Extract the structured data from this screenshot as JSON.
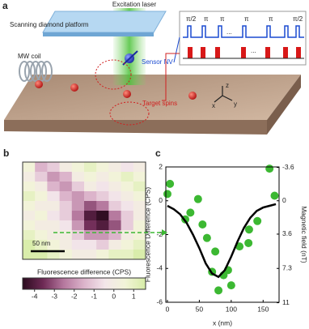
{
  "panel_a": {
    "label": "a",
    "excitation_laser": "Excitation laser",
    "platform": "Scanning diamond platform",
    "mw_coil": "MW coil",
    "sensor": "Sensor NV",
    "targets": "Target spins",
    "pulses": [
      "π/2",
      "π",
      "π",
      "π",
      "π",
      "π/2"
    ],
    "ellipsis_top": "...",
    "ellipsis_bottom": "...",
    "axes": [
      "z",
      "x",
      "y"
    ]
  },
  "panel_b": {
    "label": "b",
    "scale_bar": "50 nm"
  },
  "panel_c": {
    "label": "c"
  },
  "chart_data": [
    {
      "type": "heatmap",
      "z": [
        [
          0.5,
          -1.5,
          -1,
          0,
          0.5,
          1,
          0.5,
          0,
          -0.5,
          0
        ],
        [
          0,
          -1,
          -2,
          -1.5,
          0,
          0.5,
          0,
          0.5,
          1,
          0.5
        ],
        [
          0.5,
          0,
          -1.5,
          -2,
          -1,
          0,
          -0.5,
          0,
          0.5,
          1
        ],
        [
          1,
          0.5,
          -0.5,
          -1.5,
          -2,
          -1.5,
          -1,
          -0.5,
          0,
          0.5
        ],
        [
          0.5,
          0,
          0,
          -1,
          -2,
          -3,
          -2.5,
          -1,
          -0.5,
          0
        ],
        [
          0,
          0.5,
          -0.5,
          -1,
          -2.5,
          -4,
          -4.5,
          -2.5,
          -1,
          0
        ],
        [
          0.5,
          0,
          0,
          -0.5,
          -2,
          -3.5,
          -4,
          -3,
          -1,
          0.5
        ],
        [
          1,
          0.5,
          0,
          0,
          -1,
          -2,
          -2,
          -1.5,
          0,
          0.5
        ],
        [
          1.5,
          1,
          0.5,
          0,
          -0.5,
          -0.5,
          -1,
          0,
          0.5,
          1
        ],
        [
          1.5,
          1.5,
          1,
          0.5,
          0,
          0,
          0.5,
          1,
          1,
          1.5
        ]
      ],
      "colorscale": [
        "#2b0b1e",
        "#6e2a55",
        "#b5789e",
        "#dcb4cb",
        "#f3e6ea",
        "#f2f4d8",
        "#d6eca6"
      ],
      "zlim": [
        -4.6,
        1.6
      ],
      "zticks": [
        -4,
        -3,
        -2,
        -1,
        0,
        1
      ],
      "colorbar_label": "Fluorescence difference (CPS)"
    },
    {
      "type": "scatter",
      "xlabel": "x (nm)",
      "ylabel": "Fluorescence Difference (CPS)",
      "y2label": "Magnetic field (nT)",
      "xlim": [
        -2.5,
        175
      ],
      "xticks": [
        0,
        50,
        100,
        150
      ],
      "ylim": [
        -6,
        2
      ],
      "yticks": [
        2,
        0,
        -2,
        -4,
        -6
      ],
      "y2lim": [
        10.95,
        -3.65
      ],
      "y2ticks": [
        -3.6,
        0,
        3.6,
        7.3,
        11
      ],
      "series": [
        {
          "type": "scatter",
          "color": "#3cb832",
          "x": [
            0,
            4,
            28,
            36,
            48,
            55,
            62,
            70,
            75,
            80,
            88,
            95,
            100,
            113,
            127,
            128,
            141,
            160,
            168
          ],
          "values": [
            0.4,
            1.0,
            -1.1,
            -0.7,
            0.1,
            -1.4,
            -2.2,
            -4.2,
            -3.0,
            -5.3,
            -4.4,
            -4.1,
            -5.0,
            -2.7,
            -2.5,
            -1.7,
            -1.2,
            1.9,
            0.3
          ]
        },
        {
          "type": "line",
          "color": "#000000",
          "x": [
            0,
            10,
            20,
            30,
            40,
            50,
            60,
            70,
            80,
            90,
            100,
            110,
            120,
            130,
            140,
            150,
            160,
            170
          ],
          "values": [
            -0.3,
            -0.5,
            -0.8,
            -1.3,
            -2.0,
            -2.8,
            -3.7,
            -4.3,
            -4.5,
            -4.1,
            -3.3,
            -2.4,
            -1.6,
            -1.0,
            -0.6,
            -0.4,
            -0.3,
            -0.2
          ]
        }
      ]
    }
  ]
}
